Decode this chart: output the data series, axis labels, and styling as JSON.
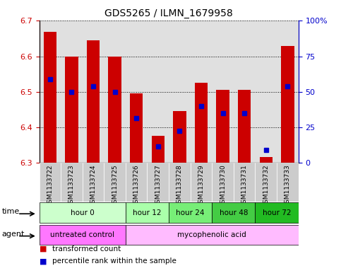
{
  "title": "GDS5265 / ILMN_1679958",
  "samples": [
    "GSM1133722",
    "GSM1133723",
    "GSM1133724",
    "GSM1133725",
    "GSM1133726",
    "GSM1133727",
    "GSM1133728",
    "GSM1133729",
    "GSM1133730",
    "GSM1133731",
    "GSM1133732",
    "GSM1133733"
  ],
  "bar_bottoms": [
    6.3,
    6.3,
    6.3,
    6.3,
    6.3,
    6.3,
    6.3,
    6.3,
    6.3,
    6.3,
    6.3,
    6.3
  ],
  "bar_tops": [
    6.67,
    6.6,
    6.645,
    6.6,
    6.495,
    6.375,
    6.445,
    6.525,
    6.505,
    6.505,
    6.315,
    6.63
  ],
  "percentile_values": [
    6.535,
    6.5,
    6.515,
    6.5,
    6.425,
    6.345,
    6.39,
    6.46,
    6.44,
    6.44,
    6.335,
    6.515
  ],
  "ylim": [
    6.3,
    6.7
  ],
  "yticks_left": [
    6.3,
    6.4,
    6.5,
    6.6,
    6.7
  ],
  "yticks_right": [
    0,
    25,
    50,
    75,
    100
  ],
  "ytick_right_labels": [
    "0",
    "25",
    "50",
    "75",
    "100%"
  ],
  "bar_color": "#cc0000",
  "percentile_color": "#0000cc",
  "time_groups": [
    {
      "label": "hour 0",
      "start": 0,
      "end": 4,
      "color": "#ccffcc"
    },
    {
      "label": "hour 12",
      "start": 4,
      "end": 6,
      "color": "#aaffaa"
    },
    {
      "label": "hour 24",
      "start": 6,
      "end": 8,
      "color": "#77ee77"
    },
    {
      "label": "hour 48",
      "start": 8,
      "end": 10,
      "color": "#44cc44"
    },
    {
      "label": "hour 72",
      "start": 10,
      "end": 12,
      "color": "#22bb22"
    }
  ],
  "agent_groups": [
    {
      "label": "untreated control",
      "start": 0,
      "end": 4,
      "color": "#ff77ff"
    },
    {
      "label": "mycophenolic acid",
      "start": 4,
      "end": 12,
      "color": "#ffbbff"
    }
  ],
  "legend_items": [
    {
      "label": "transformed count",
      "color": "#cc0000"
    },
    {
      "label": "percentile rank within the sample",
      "color": "#0000cc"
    }
  ],
  "col_bg_color": "#cccccc",
  "ylabel_left_color": "#cc0000",
  "ylabel_right_color": "#0000cc"
}
